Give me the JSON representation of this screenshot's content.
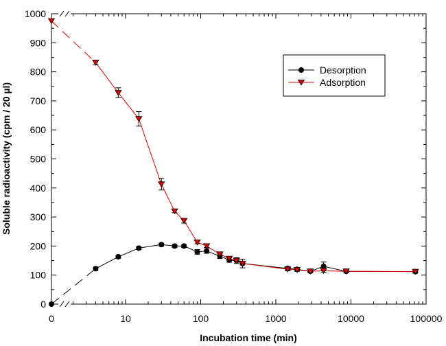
{
  "chart_data": {
    "type": "line",
    "x_scale": "log with break at 0",
    "xlabel": "Incubation time (min)",
    "ylabel": "Soluble radioactivity (cpm / 20 µl)",
    "ylim": [
      0,
      1000
    ],
    "xlim": [
      0,
      100000
    ],
    "x_ticks": [
      "0",
      "10",
      "100",
      "1000",
      "10000",
      "100000"
    ],
    "y_ticks": [
      "0",
      "100",
      "200",
      "300",
      "400",
      "500",
      "600",
      "700",
      "800",
      "900",
      "1000"
    ],
    "grid": false,
    "legend_position": "top-right",
    "series": [
      {
        "name": "Desorption",
        "color": "#000000",
        "marker": "circle",
        "points": [
          {
            "x": 0,
            "y": 0
          },
          {
            "x": 4,
            "y": 122,
            "err": 6
          },
          {
            "x": 8,
            "y": 163,
            "err": 5
          },
          {
            "x": 15,
            "y": 193,
            "err": 5
          },
          {
            "x": 30,
            "y": 205,
            "err": 5
          },
          {
            "x": 45,
            "y": 200,
            "err": 5
          },
          {
            "x": 60,
            "y": 200,
            "err": 5
          },
          {
            "x": 90,
            "y": 180,
            "err": 8
          },
          {
            "x": 120,
            "y": 183,
            "err": 8
          },
          {
            "x": 180,
            "y": 165,
            "err": 8
          },
          {
            "x": 240,
            "y": 152,
            "err": 8
          },
          {
            "x": 300,
            "y": 150,
            "err": 10
          },
          {
            "x": 360,
            "y": 140,
            "err": 15
          },
          {
            "x": 1440,
            "y": 123,
            "err": 6
          },
          {
            "x": 1920,
            "y": 120,
            "err": 6
          },
          {
            "x": 2880,
            "y": 113,
            "err": 5
          },
          {
            "x": 4320,
            "y": 130,
            "err": 15
          },
          {
            "x": 8640,
            "y": 113,
            "err": 5
          },
          {
            "x": 72000,
            "y": 112,
            "err": 5
          }
        ]
      },
      {
        "name": "Adsorption",
        "color": "#d40000",
        "marker": "triangle-down",
        "points": [
          {
            "x": 0,
            "y": 975
          },
          {
            "x": 4,
            "y": 832,
            "err": 8
          },
          {
            "x": 8,
            "y": 728,
            "err": 17
          },
          {
            "x": 15,
            "y": 638,
            "err": 25
          },
          {
            "x": 30,
            "y": 413,
            "err": 20
          },
          {
            "x": 45,
            "y": 320,
            "err": 5
          },
          {
            "x": 60,
            "y": 287,
            "err": 8
          },
          {
            "x": 90,
            "y": 213,
            "err": 5
          },
          {
            "x": 120,
            "y": 200,
            "err": 5
          },
          {
            "x": 180,
            "y": 172,
            "err": 5
          },
          {
            "x": 240,
            "y": 157,
            "err": 5
          },
          {
            "x": 300,
            "y": 150,
            "err": 5
          },
          {
            "x": 360,
            "y": 140,
            "err": 5
          },
          {
            "x": 1440,
            "y": 120,
            "err": 5
          },
          {
            "x": 1920,
            "y": 118,
            "err": 5
          },
          {
            "x": 2880,
            "y": 113,
            "err": 5
          },
          {
            "x": 4320,
            "y": 115,
            "err": 5
          },
          {
            "x": 8640,
            "y": 113,
            "err": 5
          },
          {
            "x": 72000,
            "y": 112,
            "err": 5
          }
        ]
      }
    ]
  }
}
